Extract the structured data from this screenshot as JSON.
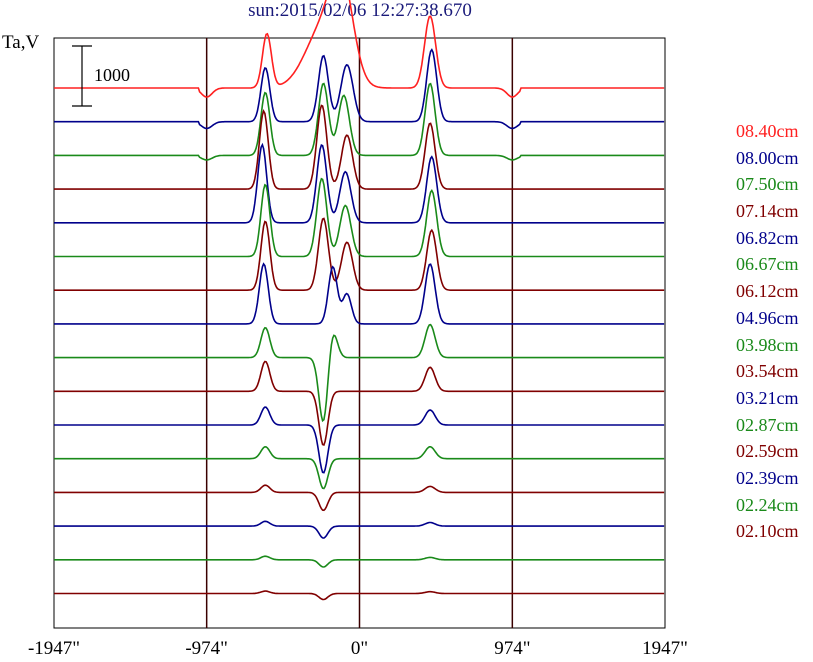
{
  "chart_data": {
    "type": "line",
    "title": "sun:2015/02/06 12:27:38.670",
    "ylabel": "Ta,V",
    "scale_bar_label": "1000",
    "x_ticks": [
      {
        "value": -1947,
        "label": "-1947\""
      },
      {
        "value": -974,
        "label": "-974\""
      },
      {
        "value": 0,
        "label": "0\""
      },
      {
        "value": 974,
        "label": "974\""
      },
      {
        "value": 1947,
        "label": "1947\""
      }
    ],
    "vertical_lines": [
      -974,
      0,
      974
    ],
    "xlim": [
      -1947,
      1947
    ],
    "grid": false,
    "legend_position": "right",
    "series": [
      {
        "name": "08.40cm",
        "color": "#ff2020",
        "peaks": [
          [
            -590,
            40,
            900
          ],
          [
            -420,
            -60,
            700
          ],
          [
            -230,
            160,
            1000
          ],
          [
            -110,
            100,
            1400
          ],
          [
            450,
            50,
            1200
          ],
          [
            -1400,
            0,
            0
          ]
        ]
      },
      {
        "name": "08.00cm",
        "color": "#00008b",
        "peaks": [
          [
            -600,
            40,
            900
          ],
          [
            -520,
            -40,
            800
          ],
          [
            -230,
            45,
            1100
          ],
          [
            -80,
            55,
            950
          ],
          [
            460,
            45,
            1200
          ]
        ]
      },
      {
        "name": "07.50cm",
        "color": "#1a8a1a",
        "peaks": [
          [
            -600,
            40,
            1050
          ],
          [
            -520,
            -40,
            900
          ],
          [
            -230,
            45,
            1200
          ],
          [
            -100,
            50,
            1000
          ],
          [
            450,
            45,
            1200
          ]
        ]
      },
      {
        "name": "07.14cm",
        "color": "#800000",
        "peaks": [
          [
            -610,
            40,
            1300
          ],
          [
            -520,
            -40,
            900
          ],
          [
            -240,
            45,
            1400
          ],
          [
            -80,
            50,
            900
          ],
          [
            450,
            45,
            1100
          ]
        ]
      },
      {
        "name": "06.82cm",
        "color": "#00008b",
        "peaks": [
          [
            -620,
            40,
            1300
          ],
          [
            -520,
            -40,
            800
          ],
          [
            -240,
            45,
            1300
          ],
          [
            -90,
            50,
            850
          ],
          [
            460,
            45,
            1100
          ]
        ]
      },
      {
        "name": "06.67cm",
        "color": "#1a8a1a",
        "peaks": [
          [
            -600,
            40,
            1200
          ],
          [
            -520,
            -40,
            700
          ],
          [
            -240,
            45,
            1300
          ],
          [
            -90,
            50,
            850
          ],
          [
            460,
            45,
            1100
          ]
        ]
      },
      {
        "name": "06.12cm",
        "color": "#800000",
        "peaks": [
          [
            -600,
            40,
            1150
          ],
          [
            -520,
            -40,
            700
          ],
          [
            -230,
            45,
            1200
          ],
          [
            -80,
            50,
            800
          ],
          [
            460,
            45,
            1000
          ]
        ]
      },
      {
        "name": "04.96cm",
        "color": "#00008b",
        "peaks": [
          [
            -610,
            40,
            1000
          ],
          [
            -170,
            40,
            950
          ],
          [
            -80,
            40,
            500
          ],
          [
            450,
            45,
            1000
          ]
        ]
      },
      {
        "name": "03.98cm",
        "color": "#1a8a1a",
        "peaks": [
          [
            -600,
            40,
            500
          ],
          [
            -230,
            40,
            -1100
          ],
          [
            -170,
            40,
            450
          ],
          [
            450,
            45,
            550
          ]
        ]
      },
      {
        "name": "03.54cm",
        "color": "#800000",
        "peaks": [
          [
            -600,
            40,
            500
          ],
          [
            -230,
            40,
            -900
          ],
          [
            450,
            45,
            400
          ]
        ]
      },
      {
        "name": "03.21cm",
        "color": "#00008b",
        "peaks": [
          [
            -600,
            40,
            300
          ],
          [
            -230,
            40,
            -800
          ],
          [
            450,
            45,
            250
          ]
        ]
      },
      {
        "name": "02.87cm",
        "color": "#1a8a1a",
        "peaks": [
          [
            -600,
            40,
            200
          ],
          [
            -230,
            40,
            -500
          ],
          [
            450,
            45,
            200
          ]
        ]
      },
      {
        "name": "02.59cm",
        "color": "#800000",
        "peaks": [
          [
            -600,
            40,
            120
          ],
          [
            -230,
            40,
            -300
          ],
          [
            450,
            45,
            100
          ]
        ]
      },
      {
        "name": "02.39cm",
        "color": "#00008b",
        "peaks": [
          [
            -600,
            40,
            80
          ],
          [
            -230,
            40,
            -200
          ],
          [
            450,
            45,
            60
          ]
        ]
      },
      {
        "name": "02.24cm",
        "color": "#1a8a1a",
        "peaks": [
          [
            -600,
            40,
            60
          ],
          [
            -230,
            40,
            -120
          ],
          [
            450,
            45,
            40
          ]
        ]
      },
      {
        "name": "02.10cm",
        "color": "#800000",
        "peaks": [
          [
            -600,
            40,
            40
          ],
          [
            -230,
            40,
            -100
          ],
          [
            450,
            45,
            30
          ]
        ]
      }
    ]
  }
}
